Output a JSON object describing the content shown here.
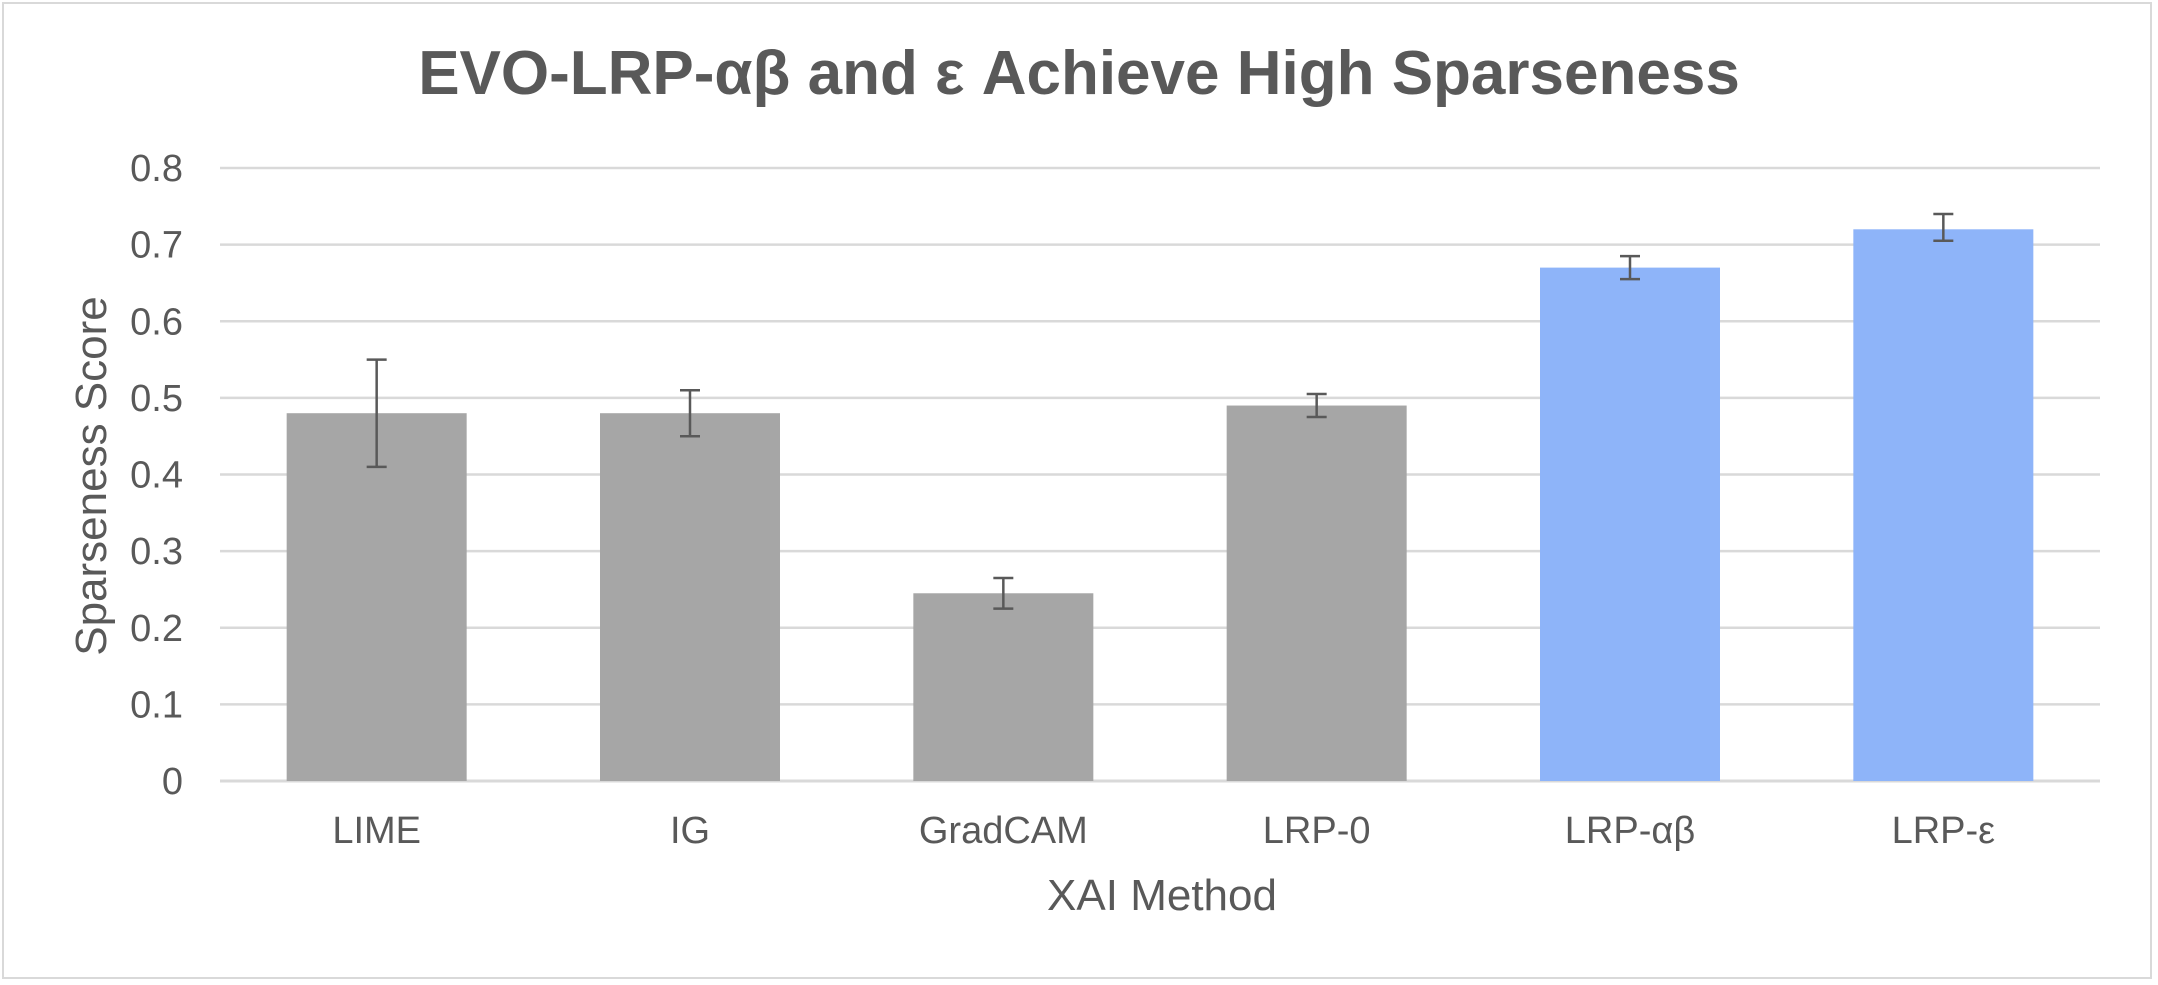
{
  "chart_data": {
    "type": "bar",
    "title": "EVO-LRP-αβ and ε Achieve High Sparseness",
    "xlabel": "XAI Method",
    "ylabel": "Sparseness Score",
    "ylim": [
      0,
      0.8
    ],
    "yticks": [
      0,
      0.1,
      0.2,
      0.3,
      0.4,
      0.5,
      0.6,
      0.7,
      0.8
    ],
    "ytick_labels": [
      "0",
      "0.1",
      "0.2",
      "0.3",
      "0.4",
      "0.5",
      "0.6",
      "0.7",
      "0.8"
    ],
    "grid": true,
    "categories": [
      "LIME",
      "IG",
      "GradCAM",
      "LRP-0",
      "LRP-αβ",
      "LRP-ε"
    ],
    "values": [
      0.48,
      0.48,
      0.245,
      0.49,
      0.67,
      0.72
    ],
    "error_low": [
      0.41,
      0.45,
      0.225,
      0.475,
      0.655,
      0.705
    ],
    "error_high": [
      0.55,
      0.51,
      0.265,
      0.505,
      0.685,
      0.74
    ],
    "colors": [
      "#a6a6a6",
      "#a6a6a6",
      "#a6a6a6",
      "#a6a6a6",
      "#8eb4f9",
      "#8eb4f9"
    ],
    "styling": {
      "text_color": "#595959",
      "grid_color": "#d9d9d9",
      "errorbar_color": "#595959"
    }
  }
}
